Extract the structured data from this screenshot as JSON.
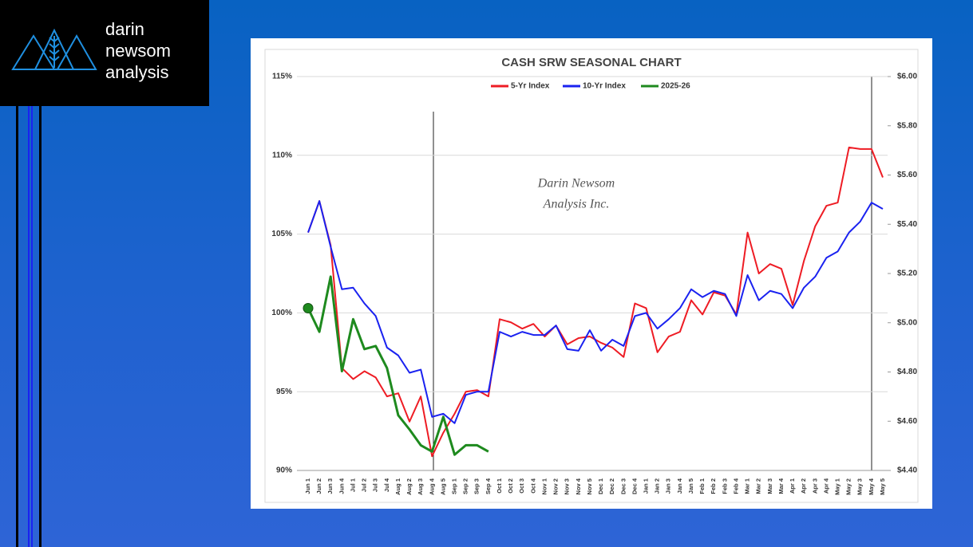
{
  "logo": {
    "lines": [
      "darin",
      "newsom",
      "analysis"
    ]
  },
  "chart_data": {
    "type": "line",
    "title": "CASH SRW SEASONAL CHART",
    "annotations": [
      "Darin Newsom",
      "Analysis Inc."
    ],
    "categories": [
      "Jun 1",
      "Jun 2",
      "Jun 3",
      "Jun 4",
      "Jul 1",
      "Jul 2",
      "Jul 3",
      "Jul 4",
      "Aug 1",
      "Aug 2",
      "Aug 3",
      "Aug 4",
      "Aug 5",
      "Sep 1",
      "Sep 2",
      "Sep 3",
      "Sep 4",
      "Oct 1",
      "Oct 2",
      "Oct 3",
      "Oct 4",
      "Nov 1",
      "Nov 2",
      "Nov 3",
      "Nov 4",
      "Nov 5",
      "Dec 1",
      "Dec 2",
      "Dec 3",
      "Dec 4",
      "Jan 1",
      "Jan 2",
      "Jan 3",
      "Jan 4",
      "Jan 5",
      "Feb 1",
      "Feb 2",
      "Feb 3",
      "Feb 4",
      "Mar 1",
      "Mar 2",
      "Mar 3",
      "Mar 4",
      "Apr 1",
      "Apr 2",
      "Apr 3",
      "Apr 4",
      "May 1",
      "May 2",
      "May 3",
      "May 4",
      "May 5"
    ],
    "series": [
      {
        "name": "5-Yr Index",
        "color": "#ee1c24",
        "values": [
          105.1,
          107.1,
          104.3,
          96.5,
          95.8,
          96.3,
          95.9,
          94.7,
          94.9,
          93.1,
          94.7,
          90.9,
          92.4,
          93.6,
          95.0,
          95.1,
          94.7,
          99.6,
          99.4,
          99.0,
          99.3,
          98.5,
          99.2,
          98.0,
          98.4,
          98.5,
          98.1,
          97.8,
          97.2,
          100.6,
          100.3,
          97.5,
          98.5,
          98.8,
          100.8,
          99.9,
          101.3,
          101.1,
          99.9,
          105.1,
          102.5,
          103.1,
          102.8,
          100.5,
          103.3,
          105.5,
          106.8,
          107.0,
          110.5,
          110.4,
          110.4,
          108.6
        ]
      },
      {
        "name": "10-Yr Index",
        "color": "#1a22f0",
        "values": [
          105.1,
          107.1,
          104.2,
          101.5,
          101.6,
          100.6,
          99.8,
          97.8,
          97.3,
          96.2,
          96.4,
          93.4,
          93.6,
          93.0,
          94.8,
          95.0,
          95.0,
          98.8,
          98.5,
          98.8,
          98.6,
          98.6,
          99.2,
          97.7,
          97.6,
          98.9,
          97.6,
          98.3,
          97.9,
          99.8,
          100.0,
          99.0,
          99.6,
          100.3,
          101.5,
          101.0,
          101.4,
          101.2,
          99.8,
          102.4,
          100.8,
          101.4,
          101.2,
          100.3,
          101.6,
          102.3,
          103.5,
          103.9,
          105.1,
          105.8,
          107.0,
          106.6
        ]
      },
      {
        "name": "2025-26",
        "color": "#1e8a1e",
        "marker": "first",
        "values": [
          100.3,
          98.8,
          102.3,
          96.3,
          99.6,
          97.7,
          97.9,
          96.5,
          93.5,
          92.6,
          91.6,
          91.2,
          93.4,
          91.0,
          91.6,
          91.6,
          91.2,
          null,
          null,
          null,
          null,
          null,
          null,
          null,
          null,
          null,
          null,
          null,
          null,
          null,
          null,
          null,
          null,
          null,
          null,
          null,
          null,
          null,
          null,
          null,
          null,
          null,
          null,
          null,
          null,
          null,
          null,
          null,
          null,
          null,
          null,
          null
        ]
      }
    ],
    "ylim": [
      90,
      115
    ],
    "yticks": [
      {
        "value": 90,
        "label": "90%"
      },
      {
        "value": 95,
        "label": "95%"
      },
      {
        "value": 100,
        "label": "100%"
      },
      {
        "value": 105,
        "label": "105%"
      },
      {
        "value": 110,
        "label": "110%"
      },
      {
        "value": 115,
        "label": "115%"
      }
    ],
    "y2lim": [
      4.4,
      6.0
    ],
    "y2ticks": [
      {
        "value": 4.4,
        "label": "$4.40"
      },
      {
        "value": 4.6,
        "label": "$4.60"
      },
      {
        "value": 4.8,
        "label": "$4.80"
      },
      {
        "value": 5.0,
        "label": "$5.00"
      },
      {
        "value": 5.2,
        "label": "$5.20"
      },
      {
        "value": 5.4,
        "label": "$5.40"
      },
      {
        "value": 5.6,
        "label": "$5.60"
      },
      {
        "value": 5.8,
        "label": "$5.80"
      },
      {
        "value": 6.0,
        "label": "$6.00"
      }
    ],
    "grid": true,
    "legend": "top"
  }
}
